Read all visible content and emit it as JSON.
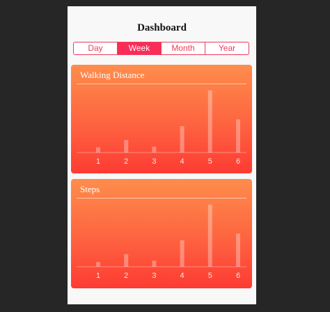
{
  "header": {
    "title": "Dashboard"
  },
  "segments": {
    "items": [
      "Day",
      "Week",
      "Month",
      "Year"
    ],
    "selected": "Week"
  },
  "colors": {
    "accent": "#fa2c58",
    "card_top": "#fe8d4c",
    "card_bottom": "#fd3b33"
  },
  "cards": [
    {
      "title": "Walking Distance",
      "chart_data": {
        "type": "bar",
        "categories": [
          "1",
          "2",
          "3",
          "4",
          "5",
          "6"
        ],
        "values": [
          8,
          19,
          9,
          40,
          94,
          50
        ],
        "ylim": [
          0,
          100
        ],
        "grid": false
      }
    },
    {
      "title": "Steps",
      "chart_data": {
        "type": "bar",
        "categories": [
          "1",
          "2",
          "3",
          "4",
          "5",
          "6"
        ],
        "values": [
          7,
          19,
          9,
          40,
          94,
          50
        ],
        "ylim": [
          0,
          100
        ],
        "grid": false
      }
    }
  ]
}
